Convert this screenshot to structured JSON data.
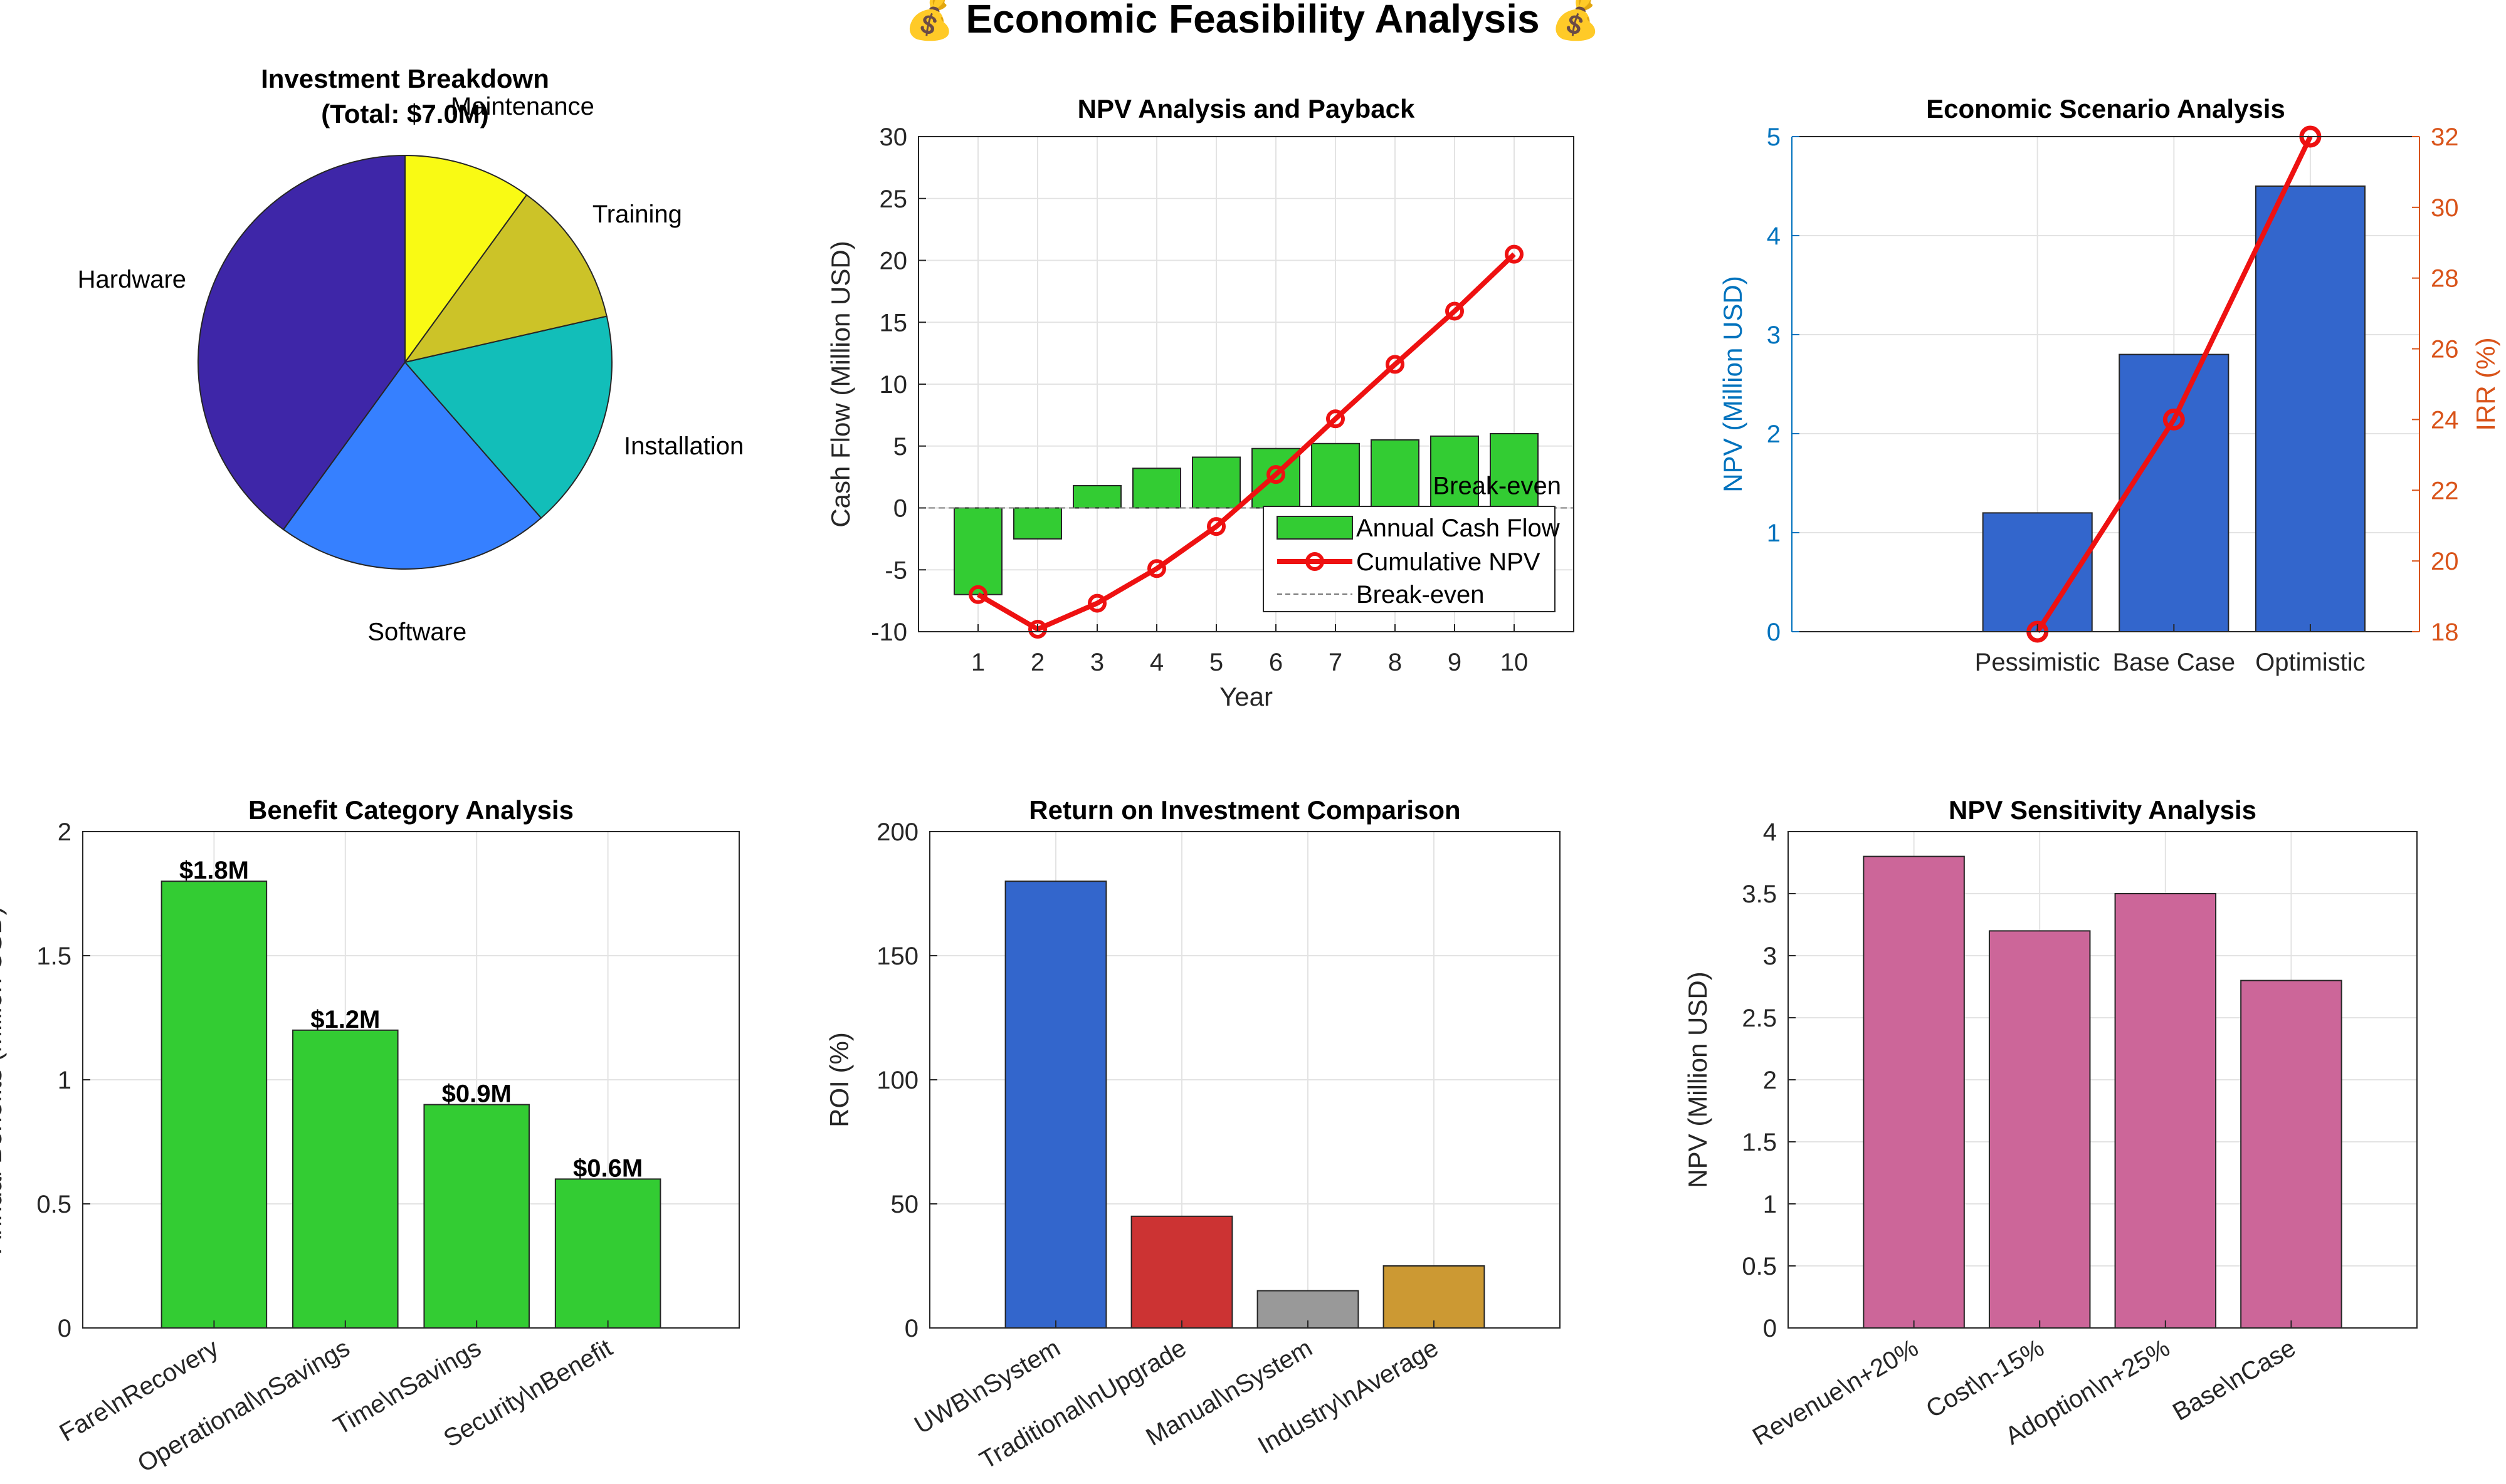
{
  "figure": {
    "title": "💰 Economic Feasibility Analysis 💰"
  },
  "chart_data": [
    {
      "id": "pie",
      "type": "pie",
      "title_line1": "Investment Breakdown",
      "title_line2": "(Total: $7.0M)",
      "slices": [
        {
          "label": "Hardware",
          "value": 2.8,
          "color": "#3E26A8"
        },
        {
          "label": "Software",
          "value": 1.5,
          "color": "#3680FF"
        },
        {
          "label": "Installation",
          "value": 1.2,
          "color": "#12BEB9"
        },
        {
          "label": "Training",
          "value": 0.8,
          "color": "#CCC328"
        },
        {
          "label": "Maintenance",
          "value": 0.7,
          "color": "#F9FA14"
        }
      ]
    },
    {
      "id": "npv",
      "type": "bar+line",
      "title": "NPV Analysis and Payback",
      "xlabel": "Year",
      "ylabel": "Cash Flow (Million USD)",
      "ylim": [
        -10,
        30
      ],
      "xlim": [
        0,
        11
      ],
      "yticks": [
        -10,
        -5,
        0,
        5,
        10,
        15,
        20,
        25,
        30
      ],
      "x": [
        1,
        2,
        3,
        4,
        5,
        6,
        7,
        8,
        9,
        10
      ],
      "series": [
        {
          "name": "Annual Cash Flow",
          "type": "bar",
          "color": "#33CC33",
          "values": [
            -7,
            -2.5,
            1.8,
            3.2,
            4.1,
            4.8,
            5.2,
            5.5,
            5.8,
            6.0
          ]
        },
        {
          "name": "Cumulative NPV",
          "type": "line",
          "color": "#EE1111",
          "values": [
            -7,
            -9.8,
            -7.7,
            -4.9,
            -1.5,
            2.7,
            7.2,
            11.6,
            15.9,
            20.5
          ]
        },
        {
          "name": "Break-even",
          "type": "hline",
          "value": 0,
          "color": "#777777"
        }
      ],
      "annotation": "Break-even",
      "grid": true,
      "legend_position": "bottom-right"
    },
    {
      "id": "scenario",
      "type": "bar+line",
      "title": "Economic Scenario Analysis",
      "categories": [
        "Pessimistic",
        "Base Case",
        "Optimistic"
      ],
      "ylabel_left": "NPV (Million USD)",
      "ylabel_right": "IRR (%)",
      "ylim_left": [
        0,
        5
      ],
      "ylim_right": [
        18,
        32
      ],
      "yticks_left": [
        0,
        1,
        2,
        3,
        4,
        5
      ],
      "yticks_right": [
        18,
        20,
        22,
        24,
        26,
        28,
        30,
        32
      ],
      "left_color": "#0072BD",
      "right_color": "#D95319",
      "series": [
        {
          "name": "NPV",
          "type": "bar",
          "color": "#3366CC",
          "values": [
            1.2,
            2.8,
            4.5
          ]
        },
        {
          "name": "IRR",
          "type": "line",
          "color": "#EE1111",
          "values": [
            18,
            24,
            32
          ]
        }
      ],
      "grid": true
    },
    {
      "id": "benefit",
      "type": "bar",
      "title": "Benefit Category Analysis",
      "ylabel": "Annual Benefits (Million USD)",
      "categories": [
        "Fare\\nRecovery",
        "Operational\\nSavings",
        "Time\\nSavings",
        "Security\\nBenefit"
      ],
      "values": [
        1.8,
        1.2,
        0.9,
        0.6
      ],
      "data_labels": [
        "$1.8M",
        "$1.2M",
        "$0.9M",
        "$0.6M"
      ],
      "ylim": [
        0,
        2
      ],
      "yticks": [
        0,
        0.5,
        1,
        1.5,
        2
      ],
      "ytick_labels": [
        "0",
        "0.5",
        "1",
        "1.5",
        "2"
      ],
      "color": "#33CC33",
      "grid": true
    },
    {
      "id": "roi",
      "type": "bar",
      "title": "Return on Investment Comparison",
      "ylabel": "ROI (%)",
      "categories": [
        "UWB\\nSystem",
        "Traditional\\nUpgrade",
        "Manual\\nSystem",
        "Industry\\nAverage"
      ],
      "values": [
        180,
        45,
        15,
        25
      ],
      "colors": [
        "#3366CC",
        "#CC3333",
        "#999999",
        "#CC9933"
      ],
      "ylim": [
        0,
        200
      ],
      "yticks": [
        0,
        50,
        100,
        150,
        200
      ],
      "ytick_labels": [
        "0",
        "50",
        "100",
        "150",
        "200"
      ],
      "grid": true
    },
    {
      "id": "sensitivity",
      "type": "bar",
      "title": "NPV Sensitivity Analysis",
      "ylabel": "NPV (Million USD)",
      "categories": [
        "Revenue\\n+20%",
        "Cost\\n-15%",
        "Adoption\\n+25%",
        "Base\\nCase"
      ],
      "values": [
        3.8,
        3.2,
        3.5,
        2.8
      ],
      "color": "#CC6699",
      "ylim": [
        0,
        4
      ],
      "yticks": [
        0,
        0.5,
        1,
        1.5,
        2,
        2.5,
        3,
        3.5,
        4
      ],
      "ytick_labels": [
        "0",
        "0.5",
        "1",
        "1.5",
        "2",
        "2.5",
        "3",
        "3.5",
        "4"
      ],
      "grid": true
    }
  ]
}
